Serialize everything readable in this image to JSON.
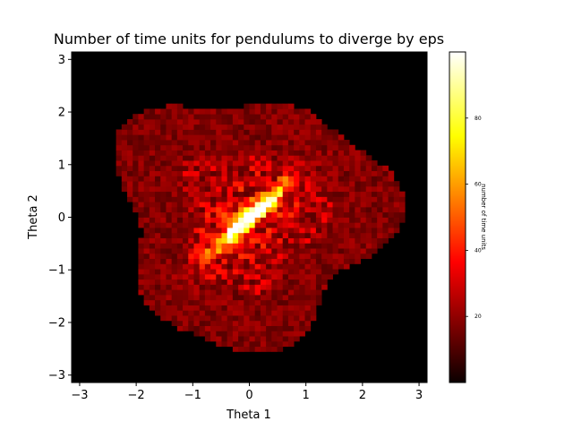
{
  "chart_data": {
    "type": "heatmap",
    "title": "Number of time units for pendulums to diverge by eps",
    "xlabel": "Theta 1",
    "ylabel": "Theta 2",
    "xlim": [
      -3.14159,
      3.14159
    ],
    "ylim": [
      -3.14159,
      3.14159
    ],
    "x_ticks": [
      -3,
      -2,
      -1,
      0,
      1,
      2,
      3
    ],
    "y_ticks": [
      -3,
      -2,
      -1,
      0,
      1,
      2,
      3
    ],
    "x_tick_labels": [
      "−3",
      "−2",
      "−1",
      "0",
      "1",
      "2",
      "3"
    ],
    "y_tick_labels": [
      "−3",
      "−2",
      "−1",
      "0",
      "1",
      "2",
      "3"
    ],
    "colormap": "hot",
    "grid": false,
    "colorbar": {
      "label": "number of time units",
      "range": [
        0,
        100
      ],
      "ticks": [
        20,
        40,
        60,
        80
      ],
      "tick_labels": [
        "20",
        "40",
        "60",
        "80"
      ]
    },
    "value_profile": {
      "background": 3,
      "central_region": 20,
      "diagonal_band_peak": 100,
      "band_direction": "bottom-left to top-right through origin"
    }
  }
}
